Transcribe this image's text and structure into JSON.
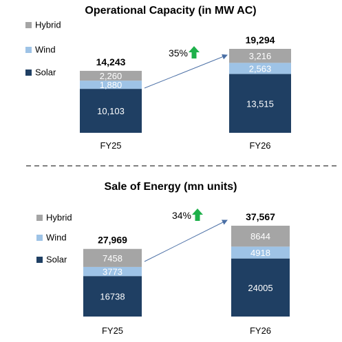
{
  "colors": {
    "solar": "#1f3f63",
    "wind": "#9ec3e6",
    "hybrid": "#a5a5a5",
    "inner_label": "#ffffff",
    "arrow_line": "#4a6fa5",
    "growth_arrow": "#1eb04a",
    "divider": "#808080"
  },
  "chart_data": [
    {
      "type": "bar",
      "stacked": true,
      "title": "Operational Capacity (in MW AC)",
      "categories": [
        "FY25",
        "FY26"
      ],
      "series": [
        {
          "name": "Solar",
          "values": [
            10103,
            13515
          ],
          "labels": [
            "10,103",
            "13,515"
          ]
        },
        {
          "name": "Wind",
          "values": [
            1880,
            2563
          ],
          "labels": [
            "1,880",
            "2,563"
          ]
        },
        {
          "name": "Hybrid",
          "values": [
            2260,
            3216
          ],
          "labels": [
            "2,260",
            "3,216"
          ]
        }
      ],
      "totals": [
        "14,243",
        "19,294"
      ],
      "growth_label": "35%",
      "legend": [
        "Hybrid",
        "Wind",
        "Solar"
      ],
      "legend_position": "left",
      "grid": false
    },
    {
      "type": "bar",
      "stacked": true,
      "title": "Sale of Energy (mn units)",
      "categories": [
        "FY25",
        "FY26"
      ],
      "series": [
        {
          "name": "Solar",
          "values": [
            16738,
            24005
          ],
          "labels": [
            "16738",
            "24005"
          ]
        },
        {
          "name": "Wind",
          "values": [
            3773,
            4918
          ],
          "labels": [
            "3773",
            "4918"
          ]
        },
        {
          "name": "Hybrid",
          "values": [
            7458,
            8644
          ],
          "labels": [
            "7458",
            "8644"
          ]
        }
      ],
      "totals": [
        "27,969",
        "37,567"
      ],
      "growth_label": "34%",
      "legend": [
        "Hybrid",
        "Wind",
        "Solar"
      ],
      "legend_position": "left",
      "grid": false
    }
  ]
}
